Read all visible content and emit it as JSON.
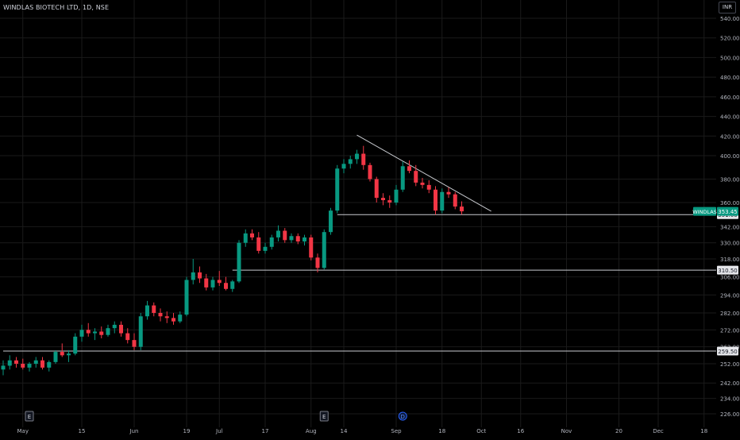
{
  "header": {
    "title": "WINDLAS BIOTECH LTD, 1D, NSE",
    "currency": "INR"
  },
  "colors": {
    "up": "#089981",
    "down": "#f23645",
    "grid": "#1a1a1a",
    "axis_text": "#b2b5be",
    "line": "#9598a1"
  },
  "chart_data": {
    "type": "candlestick",
    "symbol": "WINDLAS",
    "last_price": "353.45",
    "ylim": [
      222,
      548
    ],
    "y_ticks": [
      226,
      234,
      242,
      252,
      262,
      272,
      282,
      294,
      306,
      318,
      330,
      342,
      360,
      380,
      400,
      420,
      440,
      460,
      480,
      500,
      520,
      540
    ],
    "x_ticks": [
      {
        "i": 3,
        "label": "May"
      },
      {
        "i": 12,
        "label": "15"
      },
      {
        "i": 20,
        "label": "Jun"
      },
      {
        "i": 28,
        "label": "19"
      },
      {
        "i": 33,
        "label": "Jul"
      },
      {
        "i": 40,
        "label": "17"
      },
      {
        "i": 47,
        "label": "Aug"
      },
      {
        "i": 52,
        "label": "14"
      },
      {
        "i": 60,
        "label": "Sep"
      },
      {
        "i": 67,
        "label": "18"
      },
      {
        "i": 73,
        "label": "Oct"
      },
      {
        "i": 79,
        "label": "16"
      },
      {
        "i": 86,
        "label": "Nov"
      },
      {
        "i": 94,
        "label": "20"
      },
      {
        "i": 100,
        "label": "Dec"
      },
      {
        "i": 107,
        "label": "18"
      }
    ],
    "markers": [
      {
        "i": 4,
        "label": "E"
      },
      {
        "i": 49,
        "label": "E"
      },
      {
        "i": 61,
        "label": "D"
      }
    ],
    "levels": [
      {
        "price": 351.0,
        "label": "351.00",
        "from": 51
      },
      {
        "price": 310.5,
        "label": "310.50",
        "from": 35
      },
      {
        "price": 259.5,
        "label": "259.50",
        "from": 0
      }
    ],
    "trendline": {
      "from": {
        "i": 54,
        "price": 421
      },
      "to": {
        "i": 74.5,
        "price": 353.5
      }
    },
    "candles": [
      {
        "o": 249,
        "h": 254,
        "l": 246,
        "c": 251
      },
      {
        "o": 251,
        "h": 257,
        "l": 249,
        "c": 254
      },
      {
        "o": 254,
        "h": 256,
        "l": 250,
        "c": 252
      },
      {
        "o": 252,
        "h": 255,
        "l": 249,
        "c": 250
      },
      {
        "o": 250,
        "h": 253,
        "l": 248,
        "c": 252
      },
      {
        "o": 252,
        "h": 256,
        "l": 250,
        "c": 254
      },
      {
        "o": 254,
        "h": 256,
        "l": 249,
        "c": 250
      },
      {
        "o": 250,
        "h": 254,
        "l": 248,
        "c": 253
      },
      {
        "o": 253,
        "h": 260,
        "l": 252,
        "c": 259
      },
      {
        "o": 259,
        "h": 264,
        "l": 256,
        "c": 257
      },
      {
        "o": 257,
        "h": 260,
        "l": 253,
        "c": 258
      },
      {
        "o": 258,
        "h": 270,
        "l": 257,
        "c": 268
      },
      {
        "o": 268,
        "h": 275,
        "l": 265,
        "c": 272
      },
      {
        "o": 272,
        "h": 276,
        "l": 268,
        "c": 270
      },
      {
        "o": 270,
        "h": 273,
        "l": 266,
        "c": 271
      },
      {
        "o": 271,
        "h": 274,
        "l": 267,
        "c": 269
      },
      {
        "o": 269,
        "h": 275,
        "l": 268,
        "c": 273
      },
      {
        "o": 273,
        "h": 277,
        "l": 270,
        "c": 275
      },
      {
        "o": 275,
        "h": 277,
        "l": 268,
        "c": 270
      },
      {
        "o": 270,
        "h": 273,
        "l": 264,
        "c": 266
      },
      {
        "o": 266,
        "h": 270,
        "l": 260,
        "c": 262
      },
      {
        "o": 262,
        "h": 282,
        "l": 260,
        "c": 280
      },
      {
        "o": 280,
        "h": 290,
        "l": 278,
        "c": 287
      },
      {
        "o": 287,
        "h": 289,
        "l": 280,
        "c": 282
      },
      {
        "o": 282,
        "h": 285,
        "l": 277,
        "c": 280
      },
      {
        "o": 280,
        "h": 283,
        "l": 276,
        "c": 279
      },
      {
        "o": 279,
        "h": 282,
        "l": 275,
        "c": 277
      },
      {
        "o": 277,
        "h": 283,
        "l": 276,
        "c": 281
      },
      {
        "o": 281,
        "h": 306,
        "l": 280,
        "c": 304
      },
      {
        "o": 304,
        "h": 318,
        "l": 301,
        "c": 309
      },
      {
        "o": 309,
        "h": 313,
        "l": 302,
        "c": 305
      },
      {
        "o": 305,
        "h": 308,
        "l": 297,
        "c": 299
      },
      {
        "o": 299,
        "h": 306,
        "l": 297,
        "c": 304
      },
      {
        "o": 304,
        "h": 310,
        "l": 300,
        "c": 302
      },
      {
        "o": 302,
        "h": 306,
        "l": 297,
        "c": 298
      },
      {
        "o": 298,
        "h": 304,
        "l": 296,
        "c": 303
      },
      {
        "o": 303,
        "h": 332,
        "l": 302,
        "c": 330
      },
      {
        "o": 330,
        "h": 340,
        "l": 327,
        "c": 337
      },
      {
        "o": 337,
        "h": 340,
        "l": 332,
        "c": 334
      },
      {
        "o": 334,
        "h": 338,
        "l": 322,
        "c": 324
      },
      {
        "o": 324,
        "h": 330,
        "l": 322,
        "c": 327
      },
      {
        "o": 327,
        "h": 336,
        "l": 325,
        "c": 334
      },
      {
        "o": 334,
        "h": 343,
        "l": 331,
        "c": 339
      },
      {
        "o": 339,
        "h": 341,
        "l": 330,
        "c": 332
      },
      {
        "o": 332,
        "h": 337,
        "l": 330,
        "c": 335
      },
      {
        "o": 335,
        "h": 337,
        "l": 329,
        "c": 331
      },
      {
        "o": 331,
        "h": 336,
        "l": 328,
        "c": 334
      },
      {
        "o": 334,
        "h": 336,
        "l": 317,
        "c": 319
      },
      {
        "o": 319,
        "h": 322,
        "l": 309,
        "c": 312
      },
      {
        "o": 312,
        "h": 340,
        "l": 311,
        "c": 338
      },
      {
        "o": 338,
        "h": 356,
        "l": 336,
        "c": 354
      },
      {
        "o": 354,
        "h": 392,
        "l": 352,
        "c": 389
      },
      {
        "o": 389,
        "h": 397,
        "l": 385,
        "c": 393
      },
      {
        "o": 393,
        "h": 400,
        "l": 389,
        "c": 397
      },
      {
        "o": 397,
        "h": 406,
        "l": 393,
        "c": 402
      },
      {
        "o": 402,
        "h": 410,
        "l": 388,
        "c": 392
      },
      {
        "o": 392,
        "h": 394,
        "l": 378,
        "c": 380
      },
      {
        "o": 380,
        "h": 382,
        "l": 360,
        "c": 364
      },
      {
        "o": 364,
        "h": 368,
        "l": 358,
        "c": 362
      },
      {
        "o": 362,
        "h": 366,
        "l": 356,
        "c": 360
      },
      {
        "o": 360,
        "h": 375,
        "l": 358,
        "c": 371
      },
      {
        "o": 371,
        "h": 395,
        "l": 369,
        "c": 391
      },
      {
        "o": 391,
        "h": 396,
        "l": 385,
        "c": 387
      },
      {
        "o": 387,
        "h": 392,
        "l": 374,
        "c": 377
      },
      {
        "o": 377,
        "h": 381,
        "l": 372,
        "c": 375
      },
      {
        "o": 375,
        "h": 379,
        "l": 368,
        "c": 371
      },
      {
        "o": 371,
        "h": 374,
        "l": 351,
        "c": 354
      },
      {
        "o": 354,
        "h": 372,
        "l": 352,
        "c": 369
      },
      {
        "o": 369,
        "h": 373,
        "l": 364,
        "c": 367
      },
      {
        "o": 367,
        "h": 369,
        "l": 355,
        "c": 357
      },
      {
        "o": 357,
        "h": 361,
        "l": 351,
        "c": 353.45
      }
    ]
  }
}
